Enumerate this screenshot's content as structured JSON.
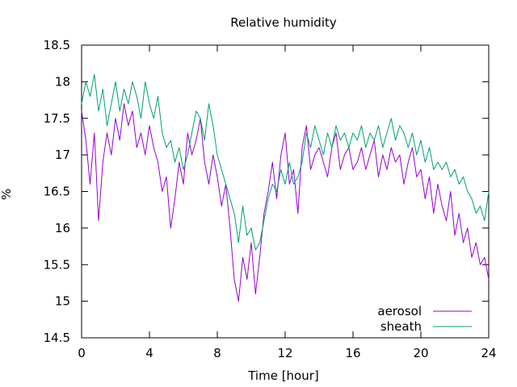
{
  "chart_data": {
    "type": "line",
    "title": "Relative humidity",
    "xlabel": "Time [hour]",
    "ylabel": "%",
    "xlim": [
      0,
      24
    ],
    "ylim": [
      14.5,
      18.5
    ],
    "xticks": [
      0,
      4,
      8,
      12,
      16,
      20,
      24
    ],
    "xtick_labels": [
      "0",
      "4",
      "8",
      "12",
      "16",
      "20",
      "24"
    ],
    "yticks": [
      14.5,
      15,
      15.5,
      16,
      16.5,
      17,
      17.5,
      18,
      18.5
    ],
    "ytick_labels": [
      "14.5",
      "15",
      "15.5",
      "16",
      "16.5",
      "17",
      "17.5",
      "18",
      "18.5"
    ],
    "grid": false,
    "legend_position": "bottom-right",
    "series": [
      {
        "name": "aerosol",
        "color": "#9400d3",
        "x": [
          0.0,
          0.25,
          0.5,
          0.75,
          1.0,
          1.25,
          1.5,
          1.75,
          2.0,
          2.25,
          2.5,
          2.75,
          3.0,
          3.25,
          3.5,
          3.75,
          4.0,
          4.25,
          4.5,
          4.75,
          5.0,
          5.25,
          5.5,
          5.75,
          6.0,
          6.25,
          6.5,
          6.75,
          7.0,
          7.25,
          7.5,
          7.75,
          8.0,
          8.25,
          8.5,
          8.75,
          9.0,
          9.25,
          9.5,
          9.75,
          10.0,
          10.25,
          10.5,
          10.75,
          11.0,
          11.25,
          11.5,
          11.75,
          12.0,
          12.25,
          12.5,
          12.75,
          13.0,
          13.25,
          13.5,
          13.75,
          14.0,
          14.25,
          14.5,
          14.75,
          15.0,
          15.25,
          15.5,
          15.75,
          16.0,
          16.25,
          16.5,
          16.75,
          17.0,
          17.25,
          17.5,
          17.75,
          18.0,
          18.25,
          18.5,
          18.75,
          19.0,
          19.25,
          19.5,
          19.75,
          20.0,
          20.25,
          20.5,
          20.75,
          21.0,
          21.25,
          21.5,
          21.75,
          22.0,
          22.25,
          22.5,
          22.75,
          23.0,
          23.25,
          23.5,
          23.75,
          24.0
        ],
        "values": [
          17.6,
          17.2,
          16.6,
          17.3,
          16.1,
          16.9,
          17.3,
          17.0,
          17.5,
          17.2,
          17.7,
          17.4,
          17.6,
          17.1,
          17.3,
          17.0,
          17.4,
          17.1,
          16.9,
          16.5,
          16.7,
          16.0,
          16.4,
          16.9,
          16.6,
          17.3,
          17.0,
          17.2,
          17.5,
          16.9,
          16.6,
          17.0,
          16.7,
          16.3,
          16.6,
          16.0,
          15.3,
          15.0,
          15.6,
          15.3,
          15.8,
          15.1,
          15.6,
          16.2,
          16.5,
          16.9,
          16.4,
          17.0,
          17.3,
          16.6,
          16.8,
          16.2,
          17.1,
          17.4,
          16.8,
          17.0,
          17.1,
          16.9,
          16.7,
          17.1,
          17.3,
          16.8,
          17.0,
          17.1,
          16.8,
          16.9,
          17.1,
          16.8,
          17.0,
          17.2,
          16.7,
          17.0,
          16.8,
          17.1,
          16.9,
          17.0,
          16.6,
          16.9,
          17.1,
          16.7,
          16.8,
          16.4,
          16.7,
          16.2,
          16.6,
          16.3,
          16.1,
          16.5,
          15.9,
          16.2,
          15.8,
          16.0,
          15.6,
          15.8,
          15.5,
          15.6,
          15.3
        ]
      },
      {
        "name": "sheath",
        "color": "#009e73",
        "x": [
          0.0,
          0.25,
          0.5,
          0.75,
          1.0,
          1.25,
          1.5,
          1.75,
          2.0,
          2.25,
          2.5,
          2.75,
          3.0,
          3.25,
          3.5,
          3.75,
          4.0,
          4.25,
          4.5,
          4.75,
          5.0,
          5.25,
          5.5,
          5.75,
          6.0,
          6.25,
          6.5,
          6.75,
          7.0,
          7.25,
          7.5,
          7.75,
          8.0,
          8.25,
          8.5,
          8.75,
          9.0,
          9.25,
          9.5,
          9.75,
          10.0,
          10.25,
          10.5,
          10.75,
          11.0,
          11.25,
          11.5,
          11.75,
          12.0,
          12.25,
          12.5,
          12.75,
          13.0,
          13.25,
          13.5,
          13.75,
          14.0,
          14.25,
          14.5,
          14.75,
          15.0,
          15.25,
          15.5,
          15.75,
          16.0,
          16.25,
          16.5,
          16.75,
          17.0,
          17.25,
          17.5,
          17.75,
          18.0,
          18.25,
          18.5,
          18.75,
          19.0,
          19.25,
          19.5,
          19.75,
          20.0,
          20.25,
          20.5,
          20.75,
          21.0,
          21.25,
          21.5,
          21.75,
          22.0,
          22.25,
          22.5,
          22.75,
          23.0,
          23.25,
          23.5,
          23.75,
          24.0
        ],
        "values": [
          17.7,
          18.0,
          17.8,
          18.1,
          17.6,
          17.9,
          17.4,
          17.7,
          18.0,
          17.6,
          17.9,
          17.7,
          18.0,
          17.8,
          17.5,
          18.0,
          17.7,
          17.5,
          17.8,
          17.3,
          17.1,
          17.2,
          16.9,
          17.1,
          16.8,
          17.0,
          17.3,
          17.6,
          17.5,
          17.2,
          17.7,
          17.4,
          17.0,
          16.8,
          16.6,
          16.4,
          16.2,
          15.8,
          16.3,
          15.9,
          16.0,
          15.7,
          15.8,
          16.1,
          16.4,
          16.6,
          16.5,
          16.8,
          16.6,
          16.9,
          16.6,
          16.7,
          16.9,
          17.3,
          17.1,
          17.4,
          17.2,
          17.0,
          17.3,
          17.1,
          17.4,
          17.2,
          17.3,
          17.1,
          17.3,
          17.2,
          17.4,
          17.1,
          17.3,
          17.2,
          17.4,
          17.1,
          17.3,
          17.5,
          17.2,
          17.4,
          17.3,
          17.1,
          17.3,
          17.0,
          17.2,
          16.9,
          17.1,
          16.8,
          16.9,
          16.8,
          16.9,
          16.7,
          16.8,
          16.6,
          16.7,
          16.5,
          16.4,
          16.2,
          16.3,
          16.1,
          16.5
        ]
      }
    ]
  }
}
